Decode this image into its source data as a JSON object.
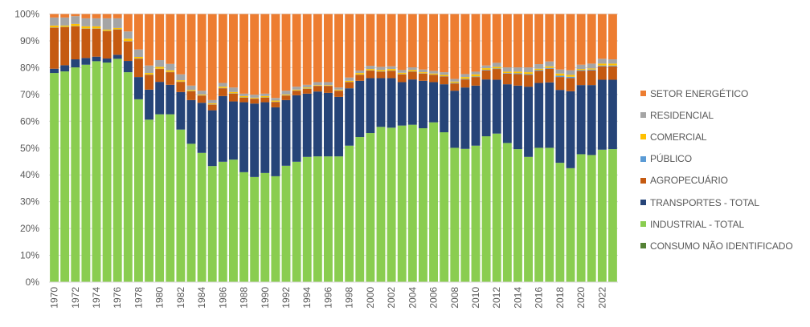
{
  "chart_data": {
    "type": "bar",
    "stacked": true,
    "percent_stacked": true,
    "title": "",
    "xlabel": "",
    "ylabel": "",
    "ylim": [
      0,
      100
    ],
    "y_ticks": [
      "0%",
      "10%",
      "20%",
      "30%",
      "40%",
      "50%",
      "60%",
      "70%",
      "80%",
      "90%",
      "100%"
    ],
    "y_tick_values": [
      0,
      10,
      20,
      30,
      40,
      50,
      60,
      70,
      80,
      90,
      100
    ],
    "grid": true,
    "legend_position": "right",
    "categories": [
      1970,
      1971,
      1972,
      1973,
      1974,
      1975,
      1976,
      1977,
      1978,
      1979,
      1980,
      1981,
      1982,
      1983,
      1984,
      1985,
      1986,
      1987,
      1988,
      1989,
      1990,
      1991,
      1992,
      1993,
      1994,
      1995,
      1996,
      1997,
      1998,
      1999,
      2000,
      2001,
      2002,
      2003,
      2004,
      2005,
      2006,
      2007,
      2008,
      2009,
      2010,
      2011,
      2012,
      2013,
      2014,
      2015,
      2016,
      2017,
      2018,
      2019,
      2020,
      2021,
      2022,
      2023
    ],
    "x_tick_labels": [
      "1970",
      "1972",
      "1974",
      "1976",
      "1978",
      "1980",
      "1982",
      "1984",
      "1986",
      "1988",
      "1990",
      "1992",
      "1994",
      "1996",
      "1998",
      "2000",
      "2002",
      "2004",
      "2006",
      "2008",
      "2010",
      "2012",
      "2014",
      "2016",
      "2018",
      "2020",
      "2022"
    ],
    "series": [
      {
        "name": "CONSUMO NÃO IDENTIFICADO",
        "color": "#548235",
        "values": [
          0,
          0,
          0,
          0,
          0,
          0,
          0,
          0,
          0,
          0,
          0,
          0,
          0,
          0,
          0,
          0,
          0,
          0,
          0,
          0,
          0,
          0,
          0,
          0,
          0,
          0,
          0,
          0,
          0,
          0,
          0,
          0,
          0,
          0,
          0,
          0,
          0,
          0,
          0,
          0,
          0,
          0,
          0,
          0,
          0,
          0,
          0,
          0,
          0,
          0,
          0,
          0,
          0,
          0
        ]
      },
      {
        "name": "INDUSTRIAL - TOTAL",
        "color": "#8ACD50",
        "values": [
          78.0,
          78.6,
          80.1,
          81.1,
          82.4,
          81.9,
          83.3,
          78.3,
          68.2,
          60.6,
          62.6,
          62.6,
          56.9,
          51.6,
          48.2,
          43.3,
          44.9,
          45.7,
          41.0,
          39.2,
          40.7,
          39.5,
          43.4,
          44.9,
          46.7,
          46.9,
          46.9,
          46.9,
          50.9,
          54.1,
          55.6,
          57.9,
          57.6,
          58.4,
          58.7,
          57.4,
          59.6,
          55.9,
          50.1,
          49.7,
          50.9,
          54.4,
          55.4,
          51.9,
          49.6,
          46.7,
          50.1,
          50.1,
          44.5,
          42.5,
          47.7,
          47.4,
          49.4,
          49.6
        ]
      },
      {
        "name": "TRANSPORTES - TOTAL",
        "color": "#264478",
        "values": [
          1.6,
          2.3,
          3.0,
          2.5,
          1.7,
          1.5,
          1.5,
          4.2,
          8.3,
          11.2,
          12.1,
          11.0,
          14.0,
          16.3,
          18.7,
          20.8,
          24.5,
          21.7,
          26.1,
          27.4,
          26.4,
          25.7,
          24.5,
          24.8,
          23.6,
          24.2,
          23.7,
          22.2,
          21.4,
          21.0,
          20.5,
          18.2,
          18.5,
          16.2,
          16.9,
          17.7,
          15.0,
          17.9,
          21.3,
          22.9,
          22.4,
          21.2,
          20.1,
          21.9,
          23.7,
          26.2,
          24.2,
          24.4,
          27.2,
          28.7,
          25.8,
          26.1,
          26.1,
          25.9
        ]
      },
      {
        "name": "AGROPECUÁRIO",
        "color": "#C55A11",
        "values": [
          15.3,
          14.2,
          12.3,
          10.9,
          10.4,
          10.2,
          9.4,
          7.3,
          6.8,
          5.5,
          4.8,
          4.7,
          3.8,
          3.3,
          2.7,
          2.1,
          2.9,
          2.9,
          1.7,
          1.8,
          1.7,
          2.0,
          1.7,
          1.7,
          1.8,
          2.1,
          2.6,
          2.3,
          2.3,
          2.2,
          2.8,
          2.4,
          2.7,
          2.9,
          2.9,
          2.7,
          2.7,
          2.9,
          2.7,
          3.0,
          3.2,
          3.4,
          4.0,
          4.0,
          4.3,
          4.4,
          4.5,
          5.1,
          4.8,
          4.9,
          5.3,
          5.5,
          5.0,
          5.0
        ]
      },
      {
        "name": "PÚBLICO",
        "color": "#5B9BD5",
        "values": [
          0.1,
          0.1,
          0.1,
          0.1,
          0.1,
          0.1,
          0.1,
          0.1,
          0.1,
          0.1,
          0.1,
          0.1,
          0.1,
          0.1,
          0.1,
          0.1,
          0.1,
          0.1,
          0.1,
          0.1,
          0.1,
          0.1,
          0.1,
          0.1,
          0.1,
          0.1,
          0.1,
          0.1,
          0.1,
          0.1,
          0.1,
          0.1,
          0.1,
          0.1,
          0.1,
          0.1,
          0.1,
          0.1,
          0.2,
          0.2,
          0.2,
          0.2,
          0.2,
          0.2,
          0.3,
          0.3,
          0.3,
          0.3,
          0.5,
          0.5,
          0.3,
          0.3,
          0.3,
          0.3
        ]
      },
      {
        "name": "COMERCIAL",
        "color": "#FFC000",
        "values": [
          0.7,
          0.5,
          0.8,
          0.8,
          0.8,
          0.5,
          0.5,
          0.9,
          0.6,
          0.6,
          0.7,
          0.6,
          0.5,
          0.4,
          0.3,
          0.4,
          0.5,
          0.5,
          0.5,
          0.3,
          0.5,
          0.4,
          0.3,
          0.3,
          0.4,
          0.2,
          0.2,
          0.3,
          0.4,
          0.6,
          0.5,
          0.5,
          0.6,
          0.5,
          0.5,
          0.4,
          0.4,
          0.5,
          0.5,
          0.7,
          0.8,
          0.6,
          0.6,
          0.5,
          0.6,
          0.7,
          0.5,
          0.6,
          0.8,
          0.7,
          0.4,
          0.4,
          0.7,
          0.7
        ]
      },
      {
        "name": "RESIDENCIAL",
        "color": "#A5A5A5",
        "values": [
          3.0,
          3.0,
          2.9,
          3.0,
          3.0,
          4.2,
          3.6,
          2.7,
          2.8,
          2.8,
          2.5,
          2.4,
          2.2,
          1.6,
          1.4,
          1.2,
          1.4,
          1.7,
          0.9,
          1.1,
          0.9,
          1.0,
          1.4,
          1.1,
          1.0,
          1.1,
          1.1,
          0.8,
          1.2,
          0.9,
          1.2,
          1.2,
          1.0,
          1.0,
          1.0,
          1.0,
          1.0,
          1.0,
          1.0,
          1.1,
          1.0,
          1.0,
          1.5,
          1.6,
          1.6,
          1.8,
          1.7,
          1.8,
          1.5,
          1.7,
          1.6,
          1.8,
          1.8,
          1.6
        ]
      },
      {
        "name": "SETOR ENERGÉTICO",
        "color": "#ED7D31",
        "values": [
          1.3,
          1.3,
          0.8,
          1.6,
          1.6,
          1.6,
          1.6,
          6.5,
          13.2,
          19.2,
          17.2,
          18.6,
          22.5,
          26.7,
          28.6,
          32.1,
          25.7,
          27.4,
          29.7,
          30.1,
          29.7,
          31.3,
          28.6,
          27.1,
          26.4,
          25.4,
          25.4,
          27.4,
          23.7,
          21.1,
          19.3,
          19.7,
          19.5,
          20.9,
          19.9,
          20.7,
          21.2,
          21.7,
          24.2,
          22.4,
          21.5,
          19.2,
          18.2,
          19.9,
          19.9,
          19.9,
          18.7,
          17.7,
          20.7,
          21.0,
          18.9,
          18.5,
          16.7,
          16.9
        ]
      }
    ]
  },
  "legend": {
    "items": [
      {
        "label": "SETOR ENERGÉTICO",
        "color": "#ED7D31"
      },
      {
        "label": "RESIDENCIAL",
        "color": "#A5A5A5"
      },
      {
        "label": "COMERCIAL",
        "color": "#FFC000"
      },
      {
        "label": "PÚBLICO",
        "color": "#5B9BD5"
      },
      {
        "label": "AGROPECUÁRIO",
        "color": "#C55A11"
      },
      {
        "label": "TRANSPORTES - TOTAL",
        "color": "#264478"
      },
      {
        "label": "INDUSTRIAL - TOTAL",
        "color": "#8ACD50"
      },
      {
        "label": "CONSUMO NÃO IDENTIFICADO",
        "color": "#548235"
      }
    ]
  }
}
